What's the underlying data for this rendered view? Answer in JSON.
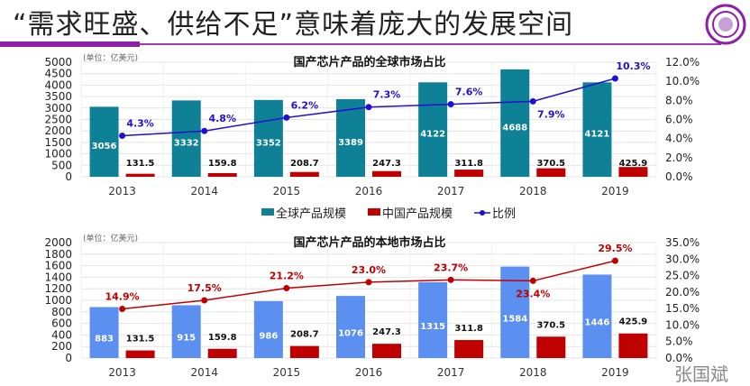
{
  "title": "“需求旺盛、供给不足”意味着庞大的发展空间",
  "watermark": "张国斌",
  "colors": {
    "global": "#0e8197",
    "china": "#c00000",
    "ratio1": "#2010d0",
    "local": "#5b8ff0",
    "ratio2": "#c00000",
    "accent": "#8e1fa8"
  },
  "chart_data": [
    {
      "type": "bar",
      "title": "国产芯片产品的全球市场占比",
      "unit": "(单位：亿美元)",
      "categories": [
        "2013",
        "2014",
        "2015",
        "2016",
        "2017",
        "2018",
        "2019"
      ],
      "ylim": [
        0,
        5000
      ],
      "yticks": [
        "0",
        "500",
        "1000",
        "1500",
        "2000",
        "2500",
        "3000",
        "3500",
        "4000",
        "4500",
        "5000"
      ],
      "y2lim": [
        0,
        12
      ],
      "y2ticks": [
        "0.0%",
        "2.0%",
        "4.0%",
        "6.0%",
        "8.0%",
        "10.0%",
        "12.0%"
      ],
      "series": [
        {
          "name": "全球产品规模",
          "kind": "bar",
          "values": [
            3056,
            3332,
            3352,
            3389,
            4122,
            4688,
            4121
          ],
          "labels": [
            "3056",
            "3332",
            "3352",
            "3389",
            "4122",
            "4688",
            "4121"
          ]
        },
        {
          "name": "中国产品规模",
          "kind": "bar",
          "values": [
            131.5,
            159.8,
            208.7,
            247.3,
            311.8,
            370.5,
            425.9
          ],
          "labels": [
            "131.5",
            "159.8",
            "208.7",
            "247.3",
            "311.8",
            "370.5",
            "425.9"
          ]
        },
        {
          "name": "比例",
          "kind": "line",
          "axis": "right",
          "values": [
            4.3,
            4.8,
            6.2,
            7.3,
            7.6,
            7.9,
            10.3
          ],
          "labels": [
            "4.3%",
            "4.8%",
            "6.2%",
            "7.3%",
            "7.6%",
            "7.9%",
            "10.3%"
          ]
        }
      ],
      "legend": "bottom",
      "grid": true
    },
    {
      "type": "bar",
      "title": "国产芯片产品的本地市场占比",
      "unit": "(单位：亿美元)",
      "categories": [
        "2013",
        "2014",
        "2015",
        "2016",
        "2017",
        "2018",
        "2019"
      ],
      "ylim": [
        0,
        2000
      ],
      "yticks": [
        "0",
        "200",
        "400",
        "600",
        "800",
        "1000",
        "1200",
        "1400",
        "1600",
        "1800",
        "2000"
      ],
      "y2lim": [
        0,
        35
      ],
      "y2ticks": [
        "0.0%",
        "5.0%",
        "10.0%",
        "15.0%",
        "20.0%",
        "25.0%",
        "30.0%",
        "35.0%"
      ],
      "series": [
        {
          "kind": "bar",
          "values": [
            883,
            915,
            986,
            1076,
            1315,
            1584,
            1446
          ],
          "labels": [
            "883",
            "915",
            "986",
            "1076",
            "1315",
            "1584",
            "1446"
          ]
        },
        {
          "kind": "bar",
          "values": [
            131.5,
            159.8,
            208.7,
            247.3,
            311.8,
            370.5,
            425.9
          ],
          "labels": [
            "131.5",
            "159.8",
            "208.7",
            "247.3",
            "311.8",
            "370.5",
            "425.9"
          ]
        },
        {
          "kind": "line",
          "axis": "right",
          "values": [
            14.9,
            17.5,
            21.2,
            23.0,
            23.7,
            23.4,
            29.5
          ],
          "labels": [
            "14.9%",
            "17.5%",
            "21.2%",
            "23.0%",
            "23.7%",
            "23.4%",
            "29.5%"
          ]
        }
      ],
      "grid": true
    }
  ]
}
